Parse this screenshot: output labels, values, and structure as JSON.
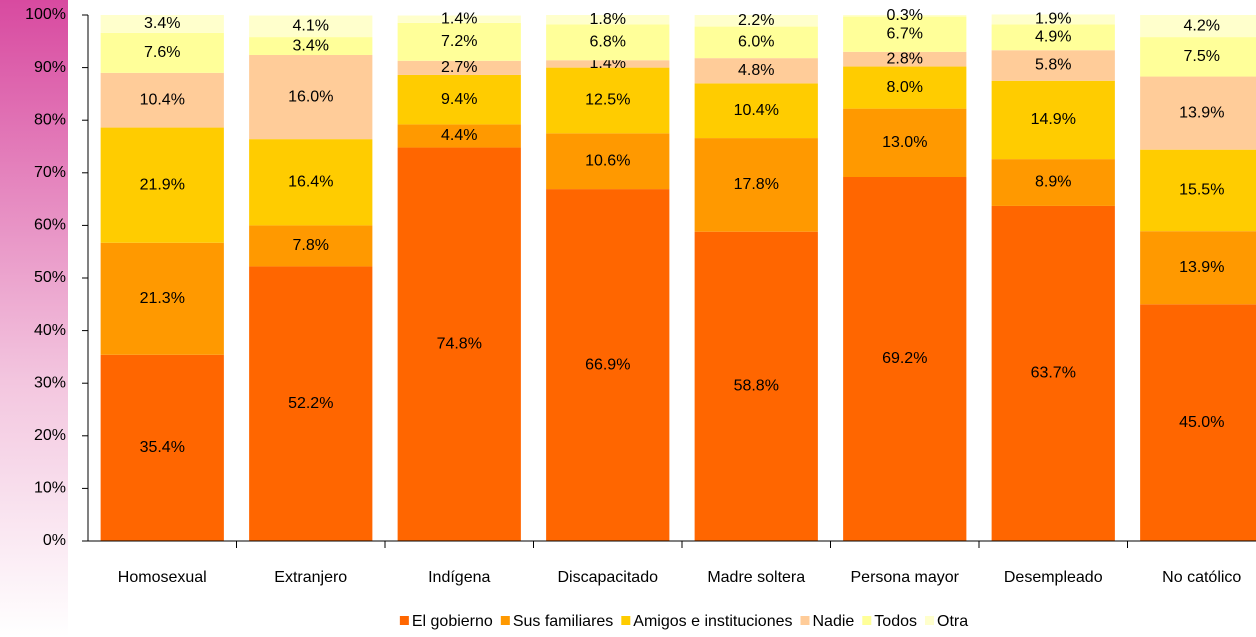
{
  "chart_data": {
    "type": "stacked_bar",
    "categories": [
      "Homosexual",
      "Extranjero",
      "Indígena",
      "Discapacitado",
      "Madre soltera",
      "Persona mayor",
      "Desempleado",
      "No católico"
    ],
    "series": [
      {
        "name": "El gobierno",
        "color": "#ff6600",
        "values": [
          35.4,
          52.2,
          74.8,
          66.9,
          58.8,
          69.2,
          63.7,
          45.0
        ],
        "value_labels": [
          "35.4%",
          "52.2%",
          "74.8%",
          "66.9%",
          "58.8%",
          "69.2%",
          "63.7%",
          "45.0%"
        ]
      },
      {
        "name": "Sus familiares",
        "color": "#ff9900",
        "values": [
          21.3,
          7.8,
          4.4,
          10.6,
          17.8,
          13.0,
          8.9,
          13.9
        ],
        "value_labels": [
          "21.3%",
          "7.8%",
          "4.4%",
          "10.6%",
          "17.8%",
          "13.0%",
          "8.9%",
          "13.9%"
        ]
      },
      {
        "name": "Amigos e instituciones",
        "color": "#ffcc00",
        "values": [
          21.9,
          16.4,
          9.4,
          12.5,
          10.4,
          8.0,
          14.9,
          15.5
        ],
        "value_labels": [
          "21.9%",
          "16.4%",
          "9.4%",
          "12.5%",
          "10.4%",
          "8.0%",
          "14.9%",
          "15.5%"
        ]
      },
      {
        "name": "Nadie",
        "color": "#ffcc99",
        "values": [
          10.4,
          16.0,
          2.7,
          1.4,
          4.8,
          2.8,
          5.8,
          13.9
        ],
        "value_labels": [
          "10.4%",
          "16.0%",
          "2.7%",
          "1.4%",
          "4.8%",
          "2.8%",
          "5.8%",
          "13.9%"
        ]
      },
      {
        "name": "Todos",
        "color": "#ffff99",
        "values": [
          7.6,
          3.4,
          7.2,
          6.8,
          6.0,
          6.7,
          4.9,
          7.5
        ],
        "value_labels": [
          "7.6%",
          "3.4%",
          "7.2%",
          "6.8%",
          "6.0%",
          "6.7%",
          "4.9%",
          "7.5%"
        ]
      },
      {
        "name": "Otra",
        "color": "#ffffcc",
        "values": [
          3.4,
          4.1,
          1.4,
          1.8,
          2.2,
          0.3,
          1.9,
          4.2
        ],
        "value_labels": [
          "3.4%",
          "4.1%",
          "1.4%",
          "1.8%",
          "2.2%",
          "0.3%",
          "1.9%",
          "4.2%"
        ]
      }
    ],
    "ylim": [
      0,
      100
    ],
    "yticks": [
      {
        "value": 0,
        "label": "0%"
      },
      {
        "value": 10,
        "label": "10%"
      },
      {
        "value": 20,
        "label": "20%"
      },
      {
        "value": 30,
        "label": "30%"
      },
      {
        "value": 40,
        "label": "40%"
      },
      {
        "value": 50,
        "label": "50%"
      },
      {
        "value": 60,
        "label": "60%"
      },
      {
        "value": 70,
        "label": "70%"
      },
      {
        "value": 80,
        "label": "80%"
      },
      {
        "value": 90,
        "label": "90%"
      },
      {
        "value": 100,
        "label": "100%"
      }
    ],
    "legend": "bottom"
  }
}
